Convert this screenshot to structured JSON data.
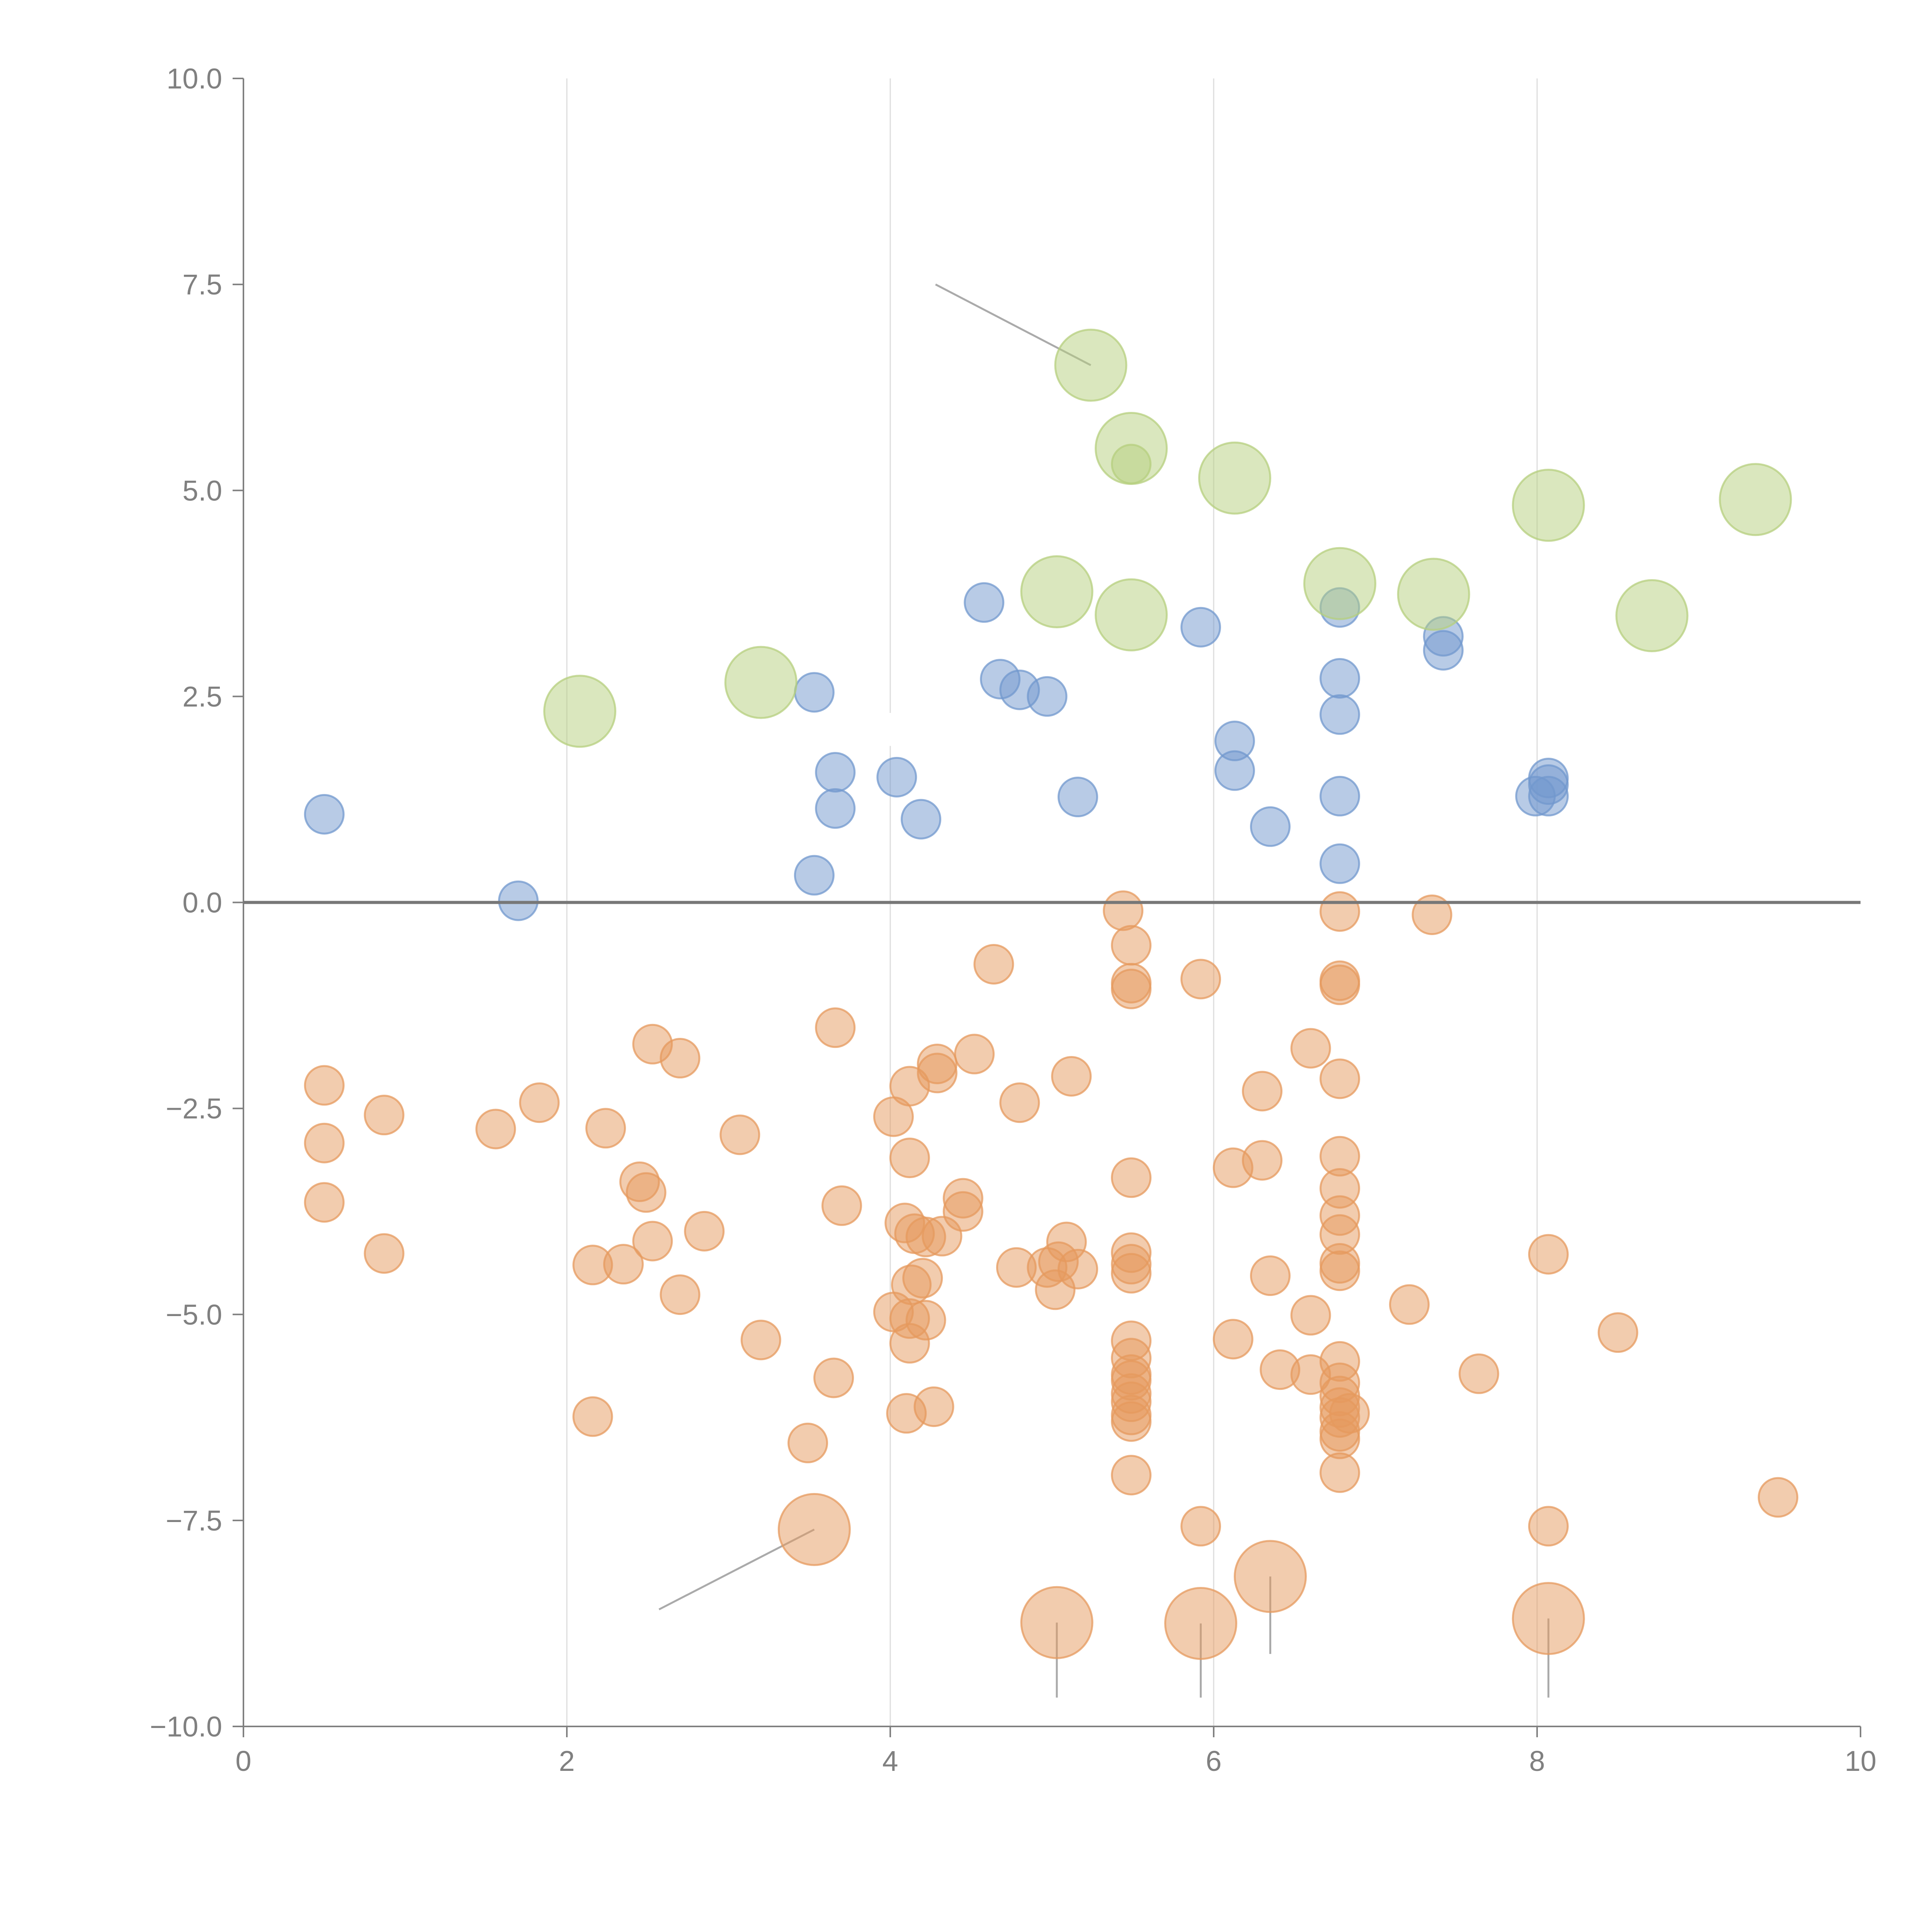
{
  "chart_data": {
    "type": "scatter",
    "variant": "bubble",
    "title": "",
    "xlabel": "",
    "ylabel": "",
    "xlim": [
      0,
      10
    ],
    "ylim": [
      -10,
      10
    ],
    "x_ticks": [
      0,
      2,
      4,
      6,
      8,
      10
    ],
    "y_ticks": [
      -10,
      -7.5,
      -5,
      -2.5,
      0,
      2.5,
      5,
      7.5,
      10
    ],
    "x_tick_labels": [
      "0",
      "2",
      "4",
      "6",
      "8",
      "10"
    ],
    "y_tick_labels": [
      "−10.0",
      "−7.5",
      "−5.0",
      "−2.5",
      "0.0",
      "2.5",
      "5.0",
      "7.5",
      "10.0"
    ],
    "vertical_gridlines": true,
    "horizontal_gridlines": false,
    "reference_line_y": 0,
    "legend": "none",
    "colors": {
      "positive": "#7298cd",
      "negative": "#e69a5e",
      "highlight": "#b5cf7e",
      "grid": "#dddddd",
      "axis": "#808080",
      "zero_line": "#777777",
      "leader": "#aaaaaa"
    },
    "series": [
      {
        "name": "positive",
        "color": "#7298cd",
        "size": 1,
        "points": [
          [
            0.5,
            1.07
          ],
          [
            1.7,
            0.02
          ],
          [
            3.53,
            2.55
          ],
          [
            3.53,
            0.33
          ],
          [
            3.66,
            1.58
          ],
          [
            3.66,
            1.14
          ],
          [
            4.04,
            1.52
          ],
          [
            4.19,
            1.01
          ],
          [
            4.58,
            3.64
          ],
          [
            4.68,
            2.71
          ],
          [
            4.8,
            2.58
          ],
          [
            4.97,
            2.5
          ],
          [
            5.16,
            1.28
          ],
          [
            5.92,
            3.34
          ],
          [
            6.13,
            1.96
          ],
          [
            6.13,
            1.6
          ],
          [
            6.35,
            0.92
          ],
          [
            6.78,
            3.58
          ],
          [
            6.78,
            2.72
          ],
          [
            6.78,
            2.28
          ],
          [
            6.78,
            1.29
          ],
          [
            6.78,
            0.47
          ],
          [
            7.42,
            3.23
          ],
          [
            7.42,
            3.06
          ],
          [
            7.99,
            1.29
          ],
          [
            8.07,
            1.51
          ],
          [
            8.07,
            1.43
          ],
          [
            8.07,
            1.29
          ]
        ]
      },
      {
        "name": "highlight",
        "color": "#b5cf7e",
        "size": 2,
        "points": [
          [
            2.08,
            2.32
          ],
          [
            3.2,
            2.67
          ],
          [
            5.03,
            3.77
          ],
          [
            5.24,
            6.52
          ],
          [
            5.49,
            5.51
          ],
          [
            5.49,
            3.49
          ],
          [
            6.13,
            5.15
          ],
          [
            6.78,
            3.87
          ],
          [
            7.36,
            3.74
          ],
          [
            8.07,
            4.82
          ],
          [
            8.71,
            3.48
          ],
          [
            9.35,
            4.89
          ]
        ]
      },
      {
        "name": "highlight-small",
        "color": "#b5cf7e",
        "size": 1,
        "points": [
          [
            5.49,
            5.32
          ]
        ]
      },
      {
        "name": "negative",
        "color": "#e69a5e",
        "size": 1,
        "points": [
          [
            0.5,
            -2.22
          ],
          [
            0.5,
            -2.92
          ],
          [
            0.5,
            -3.64
          ],
          [
            0.87,
            -2.58
          ],
          [
            0.87,
            -4.26
          ],
          [
            1.56,
            -2.75
          ],
          [
            1.83,
            -2.43
          ],
          [
            2.16,
            -4.4
          ],
          [
            2.16,
            -6.24
          ],
          [
            2.24,
            -2.74
          ],
          [
            2.35,
            -4.39
          ],
          [
            2.45,
            -3.39
          ],
          [
            2.49,
            -3.52
          ],
          [
            2.53,
            -4.11
          ],
          [
            2.53,
            -1.72
          ],
          [
            2.7,
            -4.76
          ],
          [
            2.7,
            -1.89
          ],
          [
            2.85,
            -3.99
          ],
          [
            3.07,
            -2.82
          ],
          [
            3.2,
            -5.31
          ],
          [
            3.49,
            -6.56
          ],
          [
            3.65,
            -5.77
          ],
          [
            3.66,
            -1.52
          ],
          [
            3.7,
            -3.68
          ],
          [
            4.02,
            -2.6
          ],
          [
            4.02,
            -4.97
          ],
          [
            4.09,
            -3.89
          ],
          [
            4.1,
            -6.2
          ],
          [
            4.12,
            -3.1
          ],
          [
            4.12,
            -5.05
          ],
          [
            4.12,
            -5.35
          ],
          [
            4.12,
            -2.23
          ],
          [
            4.13,
            -4.64
          ],
          [
            4.15,
            -4.02
          ],
          [
            4.2,
            -4.56
          ],
          [
            4.22,
            -4.06
          ],
          [
            4.22,
            -5.07
          ],
          [
            4.27,
            -6.12
          ],
          [
            4.29,
            -2.07
          ],
          [
            4.29,
            -1.96
          ],
          [
            4.32,
            -4.05
          ],
          [
            4.45,
            -3.59
          ],
          [
            4.45,
            -3.75
          ],
          [
            4.52,
            -1.84
          ],
          [
            4.64,
            -0.75
          ],
          [
            4.78,
            -4.43
          ],
          [
            4.8,
            -2.43
          ],
          [
            4.97,
            -4.43
          ],
          [
            5.02,
            -4.7
          ],
          [
            5.04,
            -4.36
          ],
          [
            5.09,
            -4.12
          ],
          [
            5.12,
            -2.11
          ],
          [
            5.16,
            -4.45
          ],
          [
            5.44,
            -0.1
          ],
          [
            5.49,
            -0.52
          ],
          [
            5.49,
            -0.98
          ],
          [
            5.49,
            -1.05
          ],
          [
            5.49,
            -3.34
          ],
          [
            5.49,
            -4.25
          ],
          [
            5.49,
            -4.39
          ],
          [
            5.49,
            -4.5
          ],
          [
            5.49,
            -5.32
          ],
          [
            5.49,
            -5.53
          ],
          [
            5.49,
            -5.73
          ],
          [
            5.49,
            -5.8
          ],
          [
            5.49,
            -5.96
          ],
          [
            5.49,
            -6.06
          ],
          [
            5.49,
            -6.22
          ],
          [
            5.49,
            -6.3
          ],
          [
            5.49,
            -6.95
          ],
          [
            5.92,
            -0.93
          ],
          [
            5.92,
            -7.57
          ],
          [
            6.12,
            -5.3
          ],
          [
            6.12,
            -3.22
          ],
          [
            6.3,
            -2.29
          ],
          [
            6.3,
            -3.13
          ],
          [
            6.35,
            -4.53
          ],
          [
            6.41,
            -5.67
          ],
          [
            6.6,
            -5.01
          ],
          [
            6.6,
            -5.73
          ],
          [
            6.6,
            -1.77
          ],
          [
            6.78,
            -0.11
          ],
          [
            6.78,
            -0.95
          ],
          [
            6.78,
            -1.0
          ],
          [
            6.78,
            -2.14
          ],
          [
            6.78,
            -3.08
          ],
          [
            6.78,
            -3.47
          ],
          [
            6.78,
            -3.8
          ],
          [
            6.78,
            -4.03
          ],
          [
            6.78,
            -4.38
          ],
          [
            6.78,
            -4.47
          ],
          [
            6.78,
            -5.57
          ],
          [
            6.78,
            -5.83
          ],
          [
            6.78,
            -5.99
          ],
          [
            6.78,
            -6.13
          ],
          [
            6.78,
            -6.25
          ],
          [
            6.78,
            -6.42
          ],
          [
            6.78,
            -6.51
          ],
          [
            6.78,
            -6.92
          ],
          [
            6.84,
            -6.2
          ],
          [
            7.21,
            -4.88
          ],
          [
            7.35,
            -0.15
          ],
          [
            7.64,
            -5.72
          ],
          [
            8.07,
            -4.27
          ],
          [
            8.07,
            -7.57
          ],
          [
            8.5,
            -5.22
          ],
          [
            9.49,
            -7.22
          ]
        ]
      },
      {
        "name": "negative-highlight",
        "color": "#e69a5e",
        "size": 2,
        "points": [
          [
            3.53,
            -7.61
          ],
          [
            5.03,
            -8.74
          ],
          [
            5.92,
            -8.75
          ],
          [
            6.35,
            -8.18
          ],
          [
            8.07,
            -8.69
          ]
        ]
      }
    ],
    "callouts": [
      {
        "label": "",
        "line_color": "#aaaaaa",
        "from": [
          5.24,
          6.52
        ],
        "to": [
          4.28,
          7.5
        ]
      },
      {
        "label": "",
        "line_color": "#aaaaaa",
        "from": [
          3.53,
          -7.61
        ],
        "to": [
          2.57,
          -8.58
        ]
      },
      {
        "label": "",
        "line_color": "#aaaaaa",
        "from": [
          5.03,
          -8.74
        ],
        "to": [
          5.03,
          -9.65
        ]
      },
      {
        "label": "",
        "line_color": "#aaaaaa",
        "from": [
          5.92,
          -8.75
        ],
        "to": [
          5.92,
          -9.65
        ]
      },
      {
        "label": "",
        "line_color": "#aaaaaa",
        "from": [
          6.35,
          -8.18
        ],
        "to": [
          6.35,
          -9.12
        ]
      },
      {
        "label": "",
        "line_color": "#aaaaaa",
        "from": [
          8.07,
          -8.69
        ],
        "to": [
          8.07,
          -9.65
        ]
      },
      {
        "label": "",
        "line_color": "#ffffff",
        "from": [
          5.49,
          5.51
        ],
        "to": [
          5.32,
          5.77
        ]
      },
      {
        "label": "",
        "line_color": "#ffffff",
        "from": [
          6.13,
          5.15
        ],
        "to": [
          6.27,
          5.35
        ]
      },
      {
        "label": "",
        "line_color": "#ffffff",
        "from": [
          8.07,
          4.82
        ],
        "to": [
          8.15,
          5.25
        ]
      },
      {
        "label": "",
        "line_color": "#ffffff",
        "from": [
          9.35,
          4.89
        ],
        "to": [
          9.38,
          4.5
        ]
      },
      {
        "label": "",
        "line_color": "#ffffff",
        "from": [
          5.03,
          3.77
        ],
        "to": [
          5.17,
          4.03
        ]
      },
      {
        "label": "",
        "line_color": "#ffffff",
        "from": [
          5.49,
          3.49
        ],
        "to": [
          5.68,
          3.32
        ]
      },
      {
        "label": "",
        "line_color": "#ffffff",
        "from": [
          6.78,
          3.87
        ],
        "to": [
          7.2,
          4.15
        ]
      },
      {
        "label": "",
        "line_color": "#ffffff",
        "from": [
          7.36,
          3.74
        ],
        "to": [
          7.55,
          3.55
        ]
      },
      {
        "label": "",
        "line_color": "#ffffff",
        "from": [
          8.71,
          3.48
        ],
        "to": [
          8.9,
          3.3
        ]
      },
      {
        "label": "",
        "line_color": "#ffffff",
        "from": [
          2.08,
          2.32
        ],
        "to": [
          2.22,
          2.6
        ]
      },
      {
        "label": "",
        "line_color": "#ffffff",
        "from": [
          4.0,
          1.9
        ],
        "to": [
          4.0,
          2.3
        ]
      }
    ]
  }
}
